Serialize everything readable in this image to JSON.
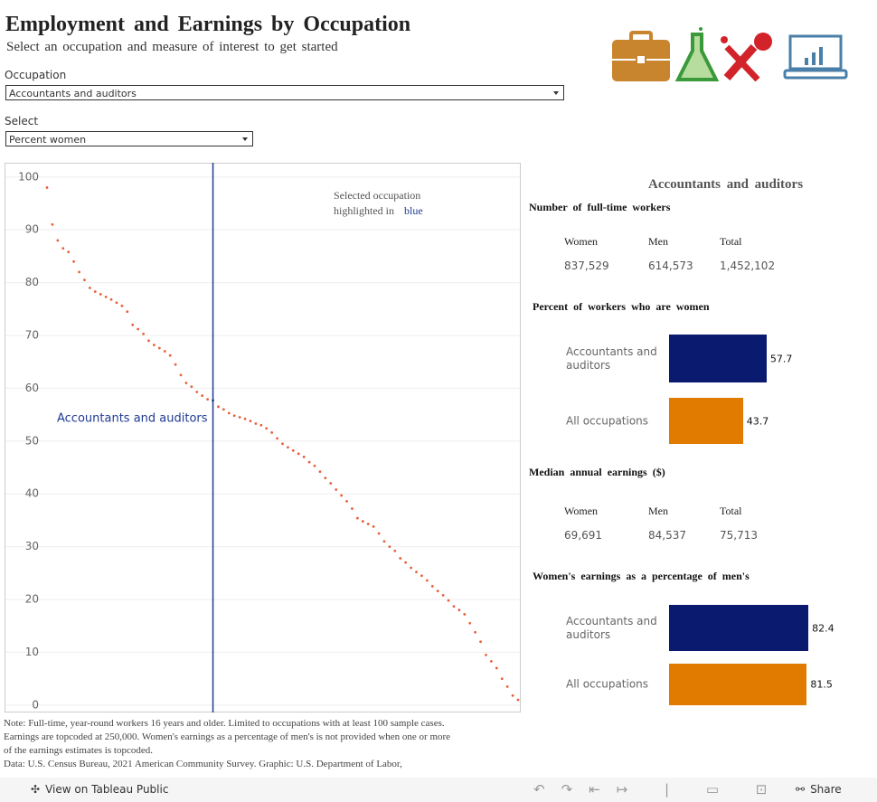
{
  "header": {
    "title": "Employment and Earnings by Occupation",
    "subtitle": "Select an occupation and measure of interest to get started"
  },
  "controls": {
    "occupation_label": "Occupation",
    "occupation_value": "Accountants and auditors",
    "measure_label": "Select",
    "measure_value": "Percent women"
  },
  "panel": {
    "occupation": "Accountants and auditors",
    "workers": {
      "title": "Number of full-time workers",
      "headers": [
        "Women",
        "Men",
        "Total"
      ],
      "values": [
        "837,529",
        "614,573",
        "1,452,102"
      ]
    },
    "earnings": {
      "title": "Median annual earnings ($)",
      "headers": [
        "Women",
        "Men",
        "Total"
      ],
      "values": [
        "69,691",
        "84,537",
        "75,713"
      ]
    }
  },
  "chart_data": [
    {
      "type": "scatter",
      "color": "#e8603c",
      "highlight_color": "#1f3a93",
      "annotation_lines": [
        "Selected occupation",
        "highlighted in"
      ],
      "annotation_highlight": "blue",
      "selected_label": "Accountants and auditors",
      "selected_index": 31,
      "values": [
        98,
        91,
        88,
        86.5,
        85.8,
        84,
        82,
        80.5,
        79,
        78.3,
        77.8,
        77.3,
        76.8,
        76.2,
        75.6,
        74.5,
        72,
        71.2,
        70.3,
        69,
        68.2,
        67.6,
        67,
        66.2,
        64.5,
        62.5,
        61,
        60.3,
        59.3,
        58.6,
        57.9,
        57.7,
        56.5,
        56,
        55.3,
        54.8,
        54.5,
        54.2,
        53.8,
        53.3,
        53,
        52.4,
        51.6,
        50.5,
        49.5,
        48.8,
        48.2,
        47.6,
        47,
        46,
        45.3,
        44.2,
        43,
        42,
        40.8,
        39.7,
        38.6,
        37.2,
        35.4,
        34.8,
        34.3,
        33.8,
        32.5,
        31,
        30,
        29.2,
        27.8,
        27,
        26,
        25.2,
        24.5,
        23.6,
        22.5,
        21.6,
        20.8,
        19.8,
        18.7,
        18,
        17.2,
        15.5,
        13.8,
        12,
        9.5,
        8.3,
        7,
        5,
        3.5,
        1.8,
        1
      ],
      "ylim": [
        -1.4,
        102.7
      ],
      "yticks": [
        0,
        10,
        20,
        30,
        40,
        50,
        60,
        70,
        80,
        90,
        100
      ],
      "grid": true
    },
    {
      "type": "bar",
      "orientation": "horizontal",
      "title": "Percent of workers who are women",
      "categories": [
        "Accountants and auditors",
        "All occupations"
      ],
      "values": [
        57.7,
        43.7
      ],
      "colors": [
        "#0a1a6e",
        "#e07b00"
      ],
      "xlim": [
        0,
        100
      ]
    },
    {
      "type": "bar",
      "orientation": "horizontal",
      "title": "Women's earnings as a percentage of men's",
      "categories": [
        "Accountants and auditors",
        "All occupations"
      ],
      "values": [
        82.4,
        81.5
      ],
      "colors": [
        "#0a1a6e",
        "#e07b00"
      ],
      "xlim": [
        0,
        100
      ]
    }
  ],
  "footer": {
    "note": "Note: Full-time, year-round workers 16 years and older. Limited to occupations with at least 100 sample cases. Earnings are topcoded at 250,000. Women's earnings as a percentage of men's is not provided when one or more of the earnings estimates is topcoded.",
    "source": "Data: U.S. Census Bureau, 2021 American Community Survey. Graphic: U.S. Department of Labor,"
  },
  "toolbar": {
    "view": "View on Tableau Public",
    "share": "Share"
  }
}
